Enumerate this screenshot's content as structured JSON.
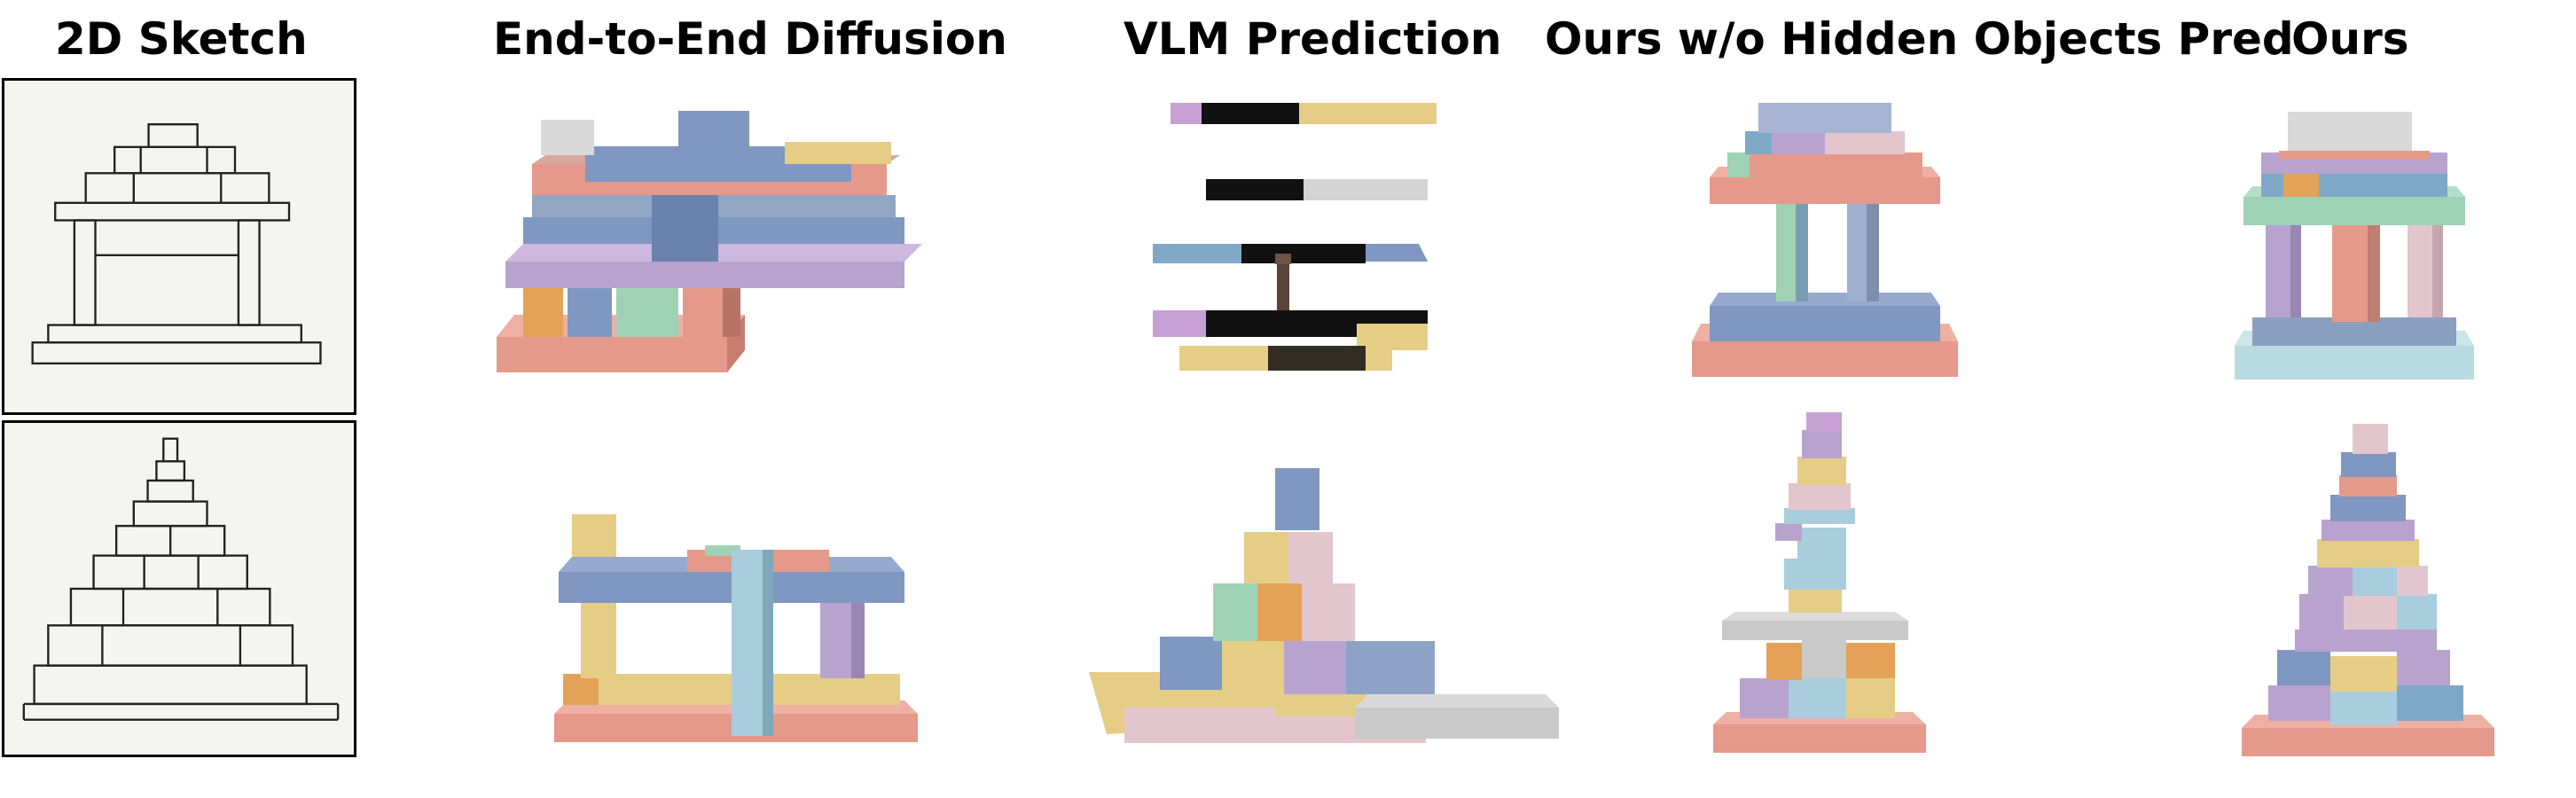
{
  "headers": {
    "sketch": "2D Sketch",
    "e2e": "End-to-End Diffusion",
    "vlm": "VLM Prediction",
    "ours_wo": "Ours w/o Hidden Objects Pred",
    "ours": "Ours"
  },
  "colors": {
    "salmon": "#e5998b",
    "blue": "#7f97c1",
    "lavender": "#b8a3cf",
    "yellow": "#e6cd86",
    "green": "#9fd2b5",
    "orange": "#e3a257",
    "lightblue": "#a9cddc",
    "grey": "#c9c9c9",
    "pink": "#e3c6cd",
    "black": "#111111"
  },
  "rows": [
    {
      "sketch_subject": "temple-sketch"
    },
    {
      "sketch_subject": "pyramid-sketch"
    }
  ]
}
